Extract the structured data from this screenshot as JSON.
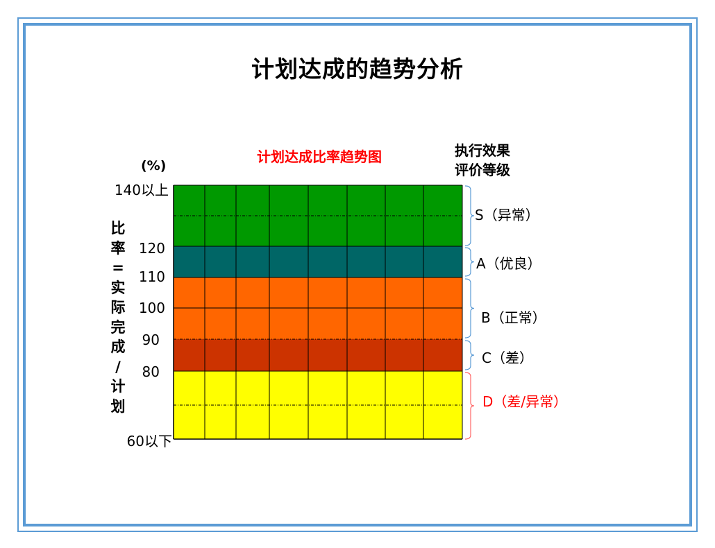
{
  "title": "计划达成的趋势分析",
  "subtitle": "计划达成比率趋势图",
  "rating_header": [
    "执行效果",
    "评价等级"
  ],
  "unit": "(%)",
  "y_axis_label": [
    "比",
    "率",
    "=",
    "实",
    "际",
    "完",
    "成",
    "/",
    "计",
    "划"
  ],
  "y_ticks": [
    "140以上",
    "120",
    "110",
    "100",
    "90",
    "80",
    "60以下"
  ],
  "grades": [
    {
      "label": "S（异常）",
      "color": "#000000"
    },
    {
      "label": "A（优良）",
      "color": "#000000"
    },
    {
      "label": "B（正常）",
      "color": "#000000"
    },
    {
      "label": "C（差）",
      "color": "#000000"
    },
    {
      "label": "D（差/异常）",
      "color": "#ff0000"
    }
  ],
  "bands": [
    {
      "name": "S",
      "from": 120,
      "to": 140,
      "color": "#009900"
    },
    {
      "name": "A",
      "from": 110,
      "to": 120,
      "color": "#006666"
    },
    {
      "name": "B",
      "from": 90,
      "to": 110,
      "color": "#ff6600"
    },
    {
      "name": "C",
      "from": 80,
      "to": 90,
      "color": "#cc3300"
    },
    {
      "name": "D",
      "from": 60,
      "to": 80,
      "color": "#ffff00"
    }
  ],
  "brace_colors": {
    "default": "#5b9bd5",
    "D": "#ff6666"
  }
}
